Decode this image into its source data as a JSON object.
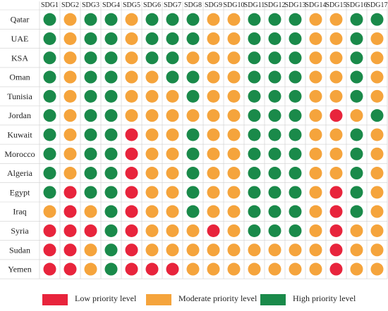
{
  "chart_data": {
    "type": "heatmap",
    "title": "",
    "xlabel": "",
    "ylabel": "",
    "columns": [
      "SDG1",
      "SDG2",
      "SDG3",
      "SDG4",
      "SDG5",
      "SDG6",
      "SDG7",
      "SDG8",
      "SDG9",
      "SDG10",
      "SDG11",
      "SDG12",
      "SDG13",
      "SDG14",
      "SDG15",
      "SDG16",
      "SDG17"
    ],
    "rows": [
      "Qatar",
      "UAE",
      "KSA",
      "Oman",
      "Tunisia",
      "Jordan",
      "Kuwait",
      "Morocco",
      "Algeria",
      "Egypt",
      "Iraq",
      "Syria",
      "Sudan",
      "Yemen"
    ],
    "levels": {
      "L": {
        "label": "Low priority level",
        "color": "#e8243c"
      },
      "M": {
        "label": "Moderate priority level",
        "color": "#f5a43c"
      },
      "H": {
        "label": "High priority level",
        "color": "#1a8a4a"
      }
    },
    "legend_order": [
      "L",
      "M",
      "H"
    ],
    "values": [
      [
        "H",
        "M",
        "H",
        "H",
        "M",
        "H",
        "H",
        "H",
        "M",
        "M",
        "H",
        "H",
        "H",
        "M",
        "M",
        "H",
        "H"
      ],
      [
        "H",
        "M",
        "H",
        "H",
        "M",
        "H",
        "H",
        "H",
        "M",
        "M",
        "H",
        "H",
        "H",
        "M",
        "M",
        "H",
        "M"
      ],
      [
        "H",
        "M",
        "H",
        "H",
        "M",
        "H",
        "H",
        "M",
        "M",
        "M",
        "H",
        "H",
        "H",
        "M",
        "M",
        "H",
        "M"
      ],
      [
        "H",
        "M",
        "H",
        "H",
        "M",
        "M",
        "H",
        "H",
        "M",
        "M",
        "H",
        "H",
        "H",
        "M",
        "M",
        "H",
        "M"
      ],
      [
        "H",
        "M",
        "H",
        "H",
        "M",
        "M",
        "M",
        "H",
        "M",
        "M",
        "H",
        "H",
        "H",
        "M",
        "M",
        "H",
        "M"
      ],
      [
        "H",
        "M",
        "H",
        "H",
        "M",
        "M",
        "M",
        "M",
        "M",
        "M",
        "H",
        "H",
        "H",
        "M",
        "L",
        "M",
        "H"
      ],
      [
        "H",
        "M",
        "H",
        "H",
        "L",
        "M",
        "M",
        "H",
        "M",
        "M",
        "H",
        "H",
        "H",
        "M",
        "M",
        "H",
        "M"
      ],
      [
        "H",
        "M",
        "H",
        "H",
        "L",
        "M",
        "M",
        "H",
        "M",
        "M",
        "H",
        "H",
        "H",
        "M",
        "M",
        "H",
        "M"
      ],
      [
        "H",
        "M",
        "H",
        "H",
        "L",
        "M",
        "M",
        "H",
        "M",
        "M",
        "H",
        "H",
        "H",
        "M",
        "M",
        "H",
        "M"
      ],
      [
        "H",
        "L",
        "H",
        "H",
        "L",
        "M",
        "M",
        "H",
        "M",
        "M",
        "H",
        "H",
        "H",
        "M",
        "L",
        "H",
        "M"
      ],
      [
        "M",
        "L",
        "M",
        "H",
        "L",
        "M",
        "M",
        "H",
        "M",
        "M",
        "H",
        "H",
        "H",
        "M",
        "L",
        "H",
        "M"
      ],
      [
        "L",
        "L",
        "L",
        "H",
        "L",
        "M",
        "M",
        "M",
        "L",
        "M",
        "H",
        "H",
        "H",
        "M",
        "L",
        "M",
        "M"
      ],
      [
        "L",
        "L",
        "M",
        "H",
        "L",
        "M",
        "M",
        "M",
        "M",
        "M",
        "M",
        "M",
        "M",
        "M",
        "L",
        "M",
        "M"
      ],
      [
        "L",
        "L",
        "M",
        "H",
        "L",
        "L",
        "L",
        "M",
        "M",
        "M",
        "M",
        "M",
        "M",
        "M",
        "L",
        "M",
        "M"
      ]
    ]
  }
}
